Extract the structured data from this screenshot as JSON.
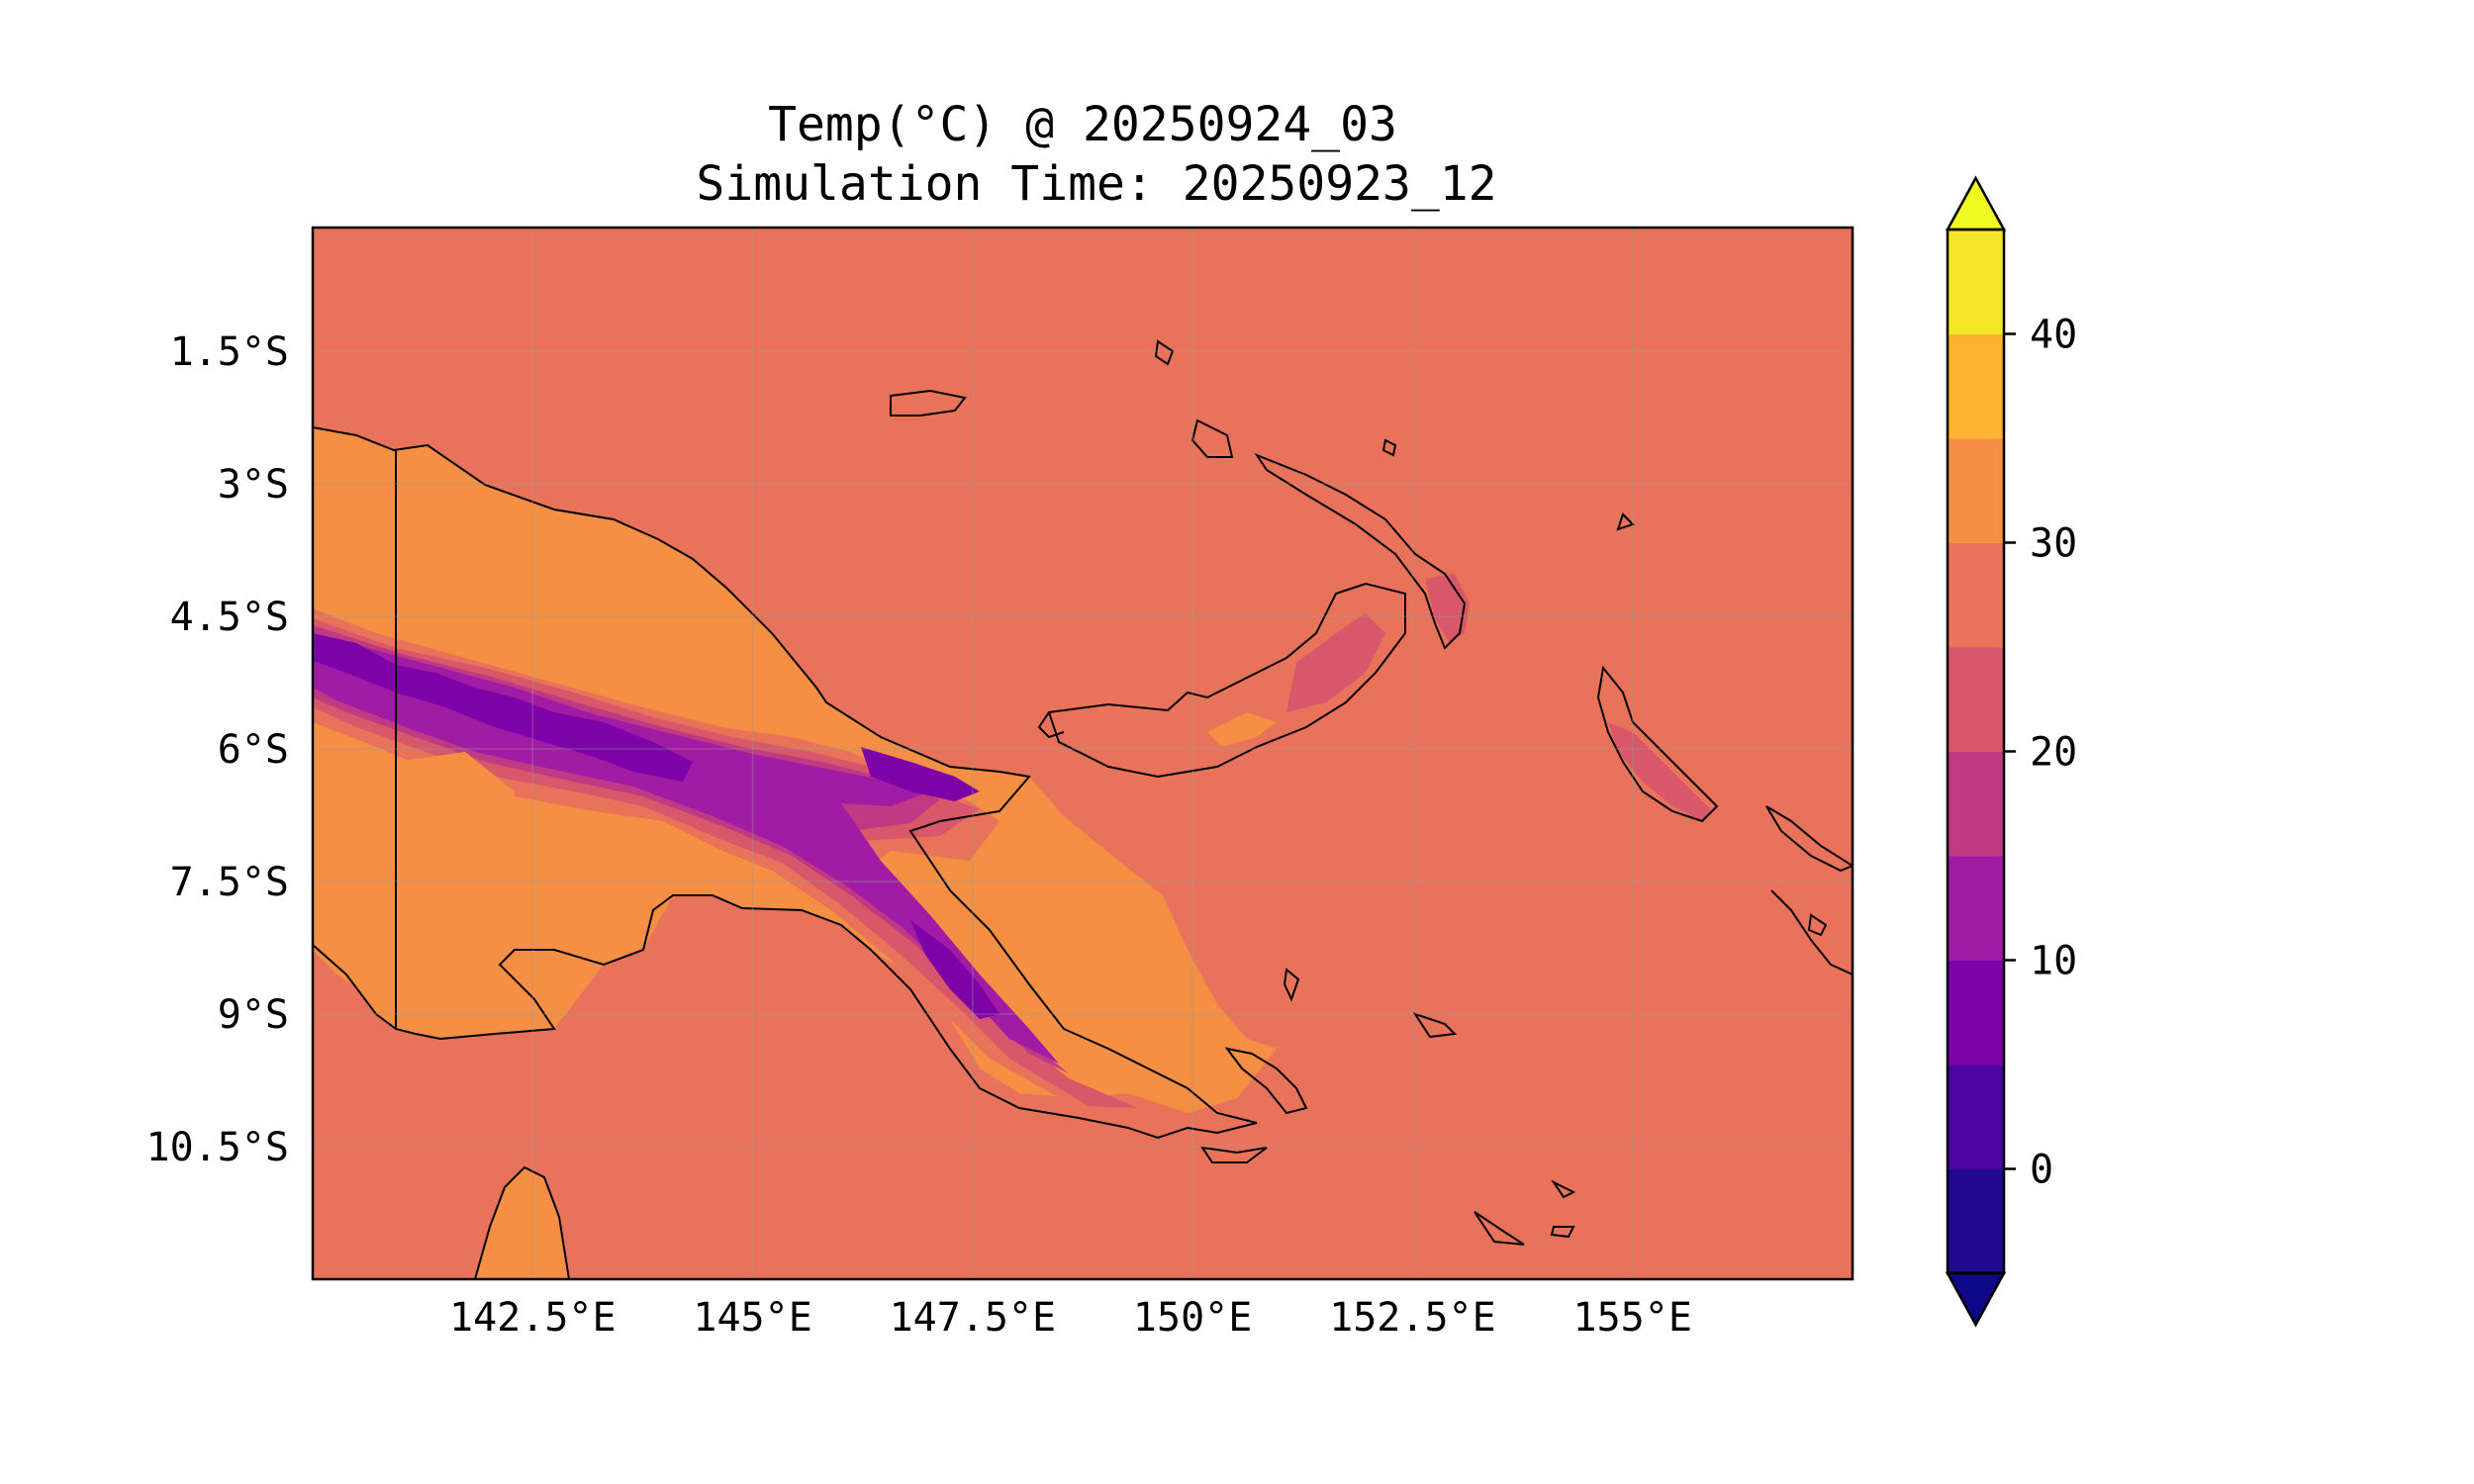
{
  "title": {
    "line1": "Temp(°C) @ 20250924_03",
    "line2": "Simulation Time: 20250923_12"
  },
  "map": {
    "lon_range": [
      140.0,
      157.5
    ],
    "lat_range": [
      -12.0,
      -0.1
    ],
    "lon_ticks": [
      {
        "value": 142.5,
        "label": "142.5°E"
      },
      {
        "value": 145.0,
        "label": "145°E"
      },
      {
        "value": 147.5,
        "label": "147.5°E"
      },
      {
        "value": 150.0,
        "label": "150°E"
      },
      {
        "value": 152.5,
        "label": "152.5°E"
      },
      {
        "value": 155.0,
        "label": "155°E"
      }
    ],
    "lat_ticks": [
      {
        "value": -1.5,
        "label": "1.5°S"
      },
      {
        "value": -3.0,
        "label": "3°S"
      },
      {
        "value": -4.5,
        "label": "4.5°S"
      },
      {
        "value": -6.0,
        "label": "6°S"
      },
      {
        "value": -7.5,
        "label": "7.5°S"
      },
      {
        "value": -9.0,
        "label": "9°S"
      },
      {
        "value": -10.5,
        "label": "10.5°S"
      }
    ],
    "gridlines": true,
    "background_level_color": "#e8735a"
  },
  "colorbar": {
    "range": [
      -5,
      45
    ],
    "extend": "both",
    "levels": [
      {
        "from": -5,
        "to": 0,
        "color": "#21088f"
      },
      {
        "from": 0,
        "to": 5,
        "color": "#4b03a1"
      },
      {
        "from": 5,
        "to": 10,
        "color": "#7d03a8"
      },
      {
        "from": 10,
        "to": 15,
        "color": "#a11ca5"
      },
      {
        "from": 15,
        "to": 20,
        "color": "#c03a83"
      },
      {
        "from": 20,
        "to": 25,
        "color": "#d8576b"
      },
      {
        "from": 25,
        "to": 30,
        "color": "#e8735a"
      },
      {
        "from": 30,
        "to": 35,
        "color": "#f58f44"
      },
      {
        "from": 35,
        "to": 40,
        "color": "#fdb32f"
      },
      {
        "from": 40,
        "to": 45,
        "color": "#f3e727"
      }
    ],
    "under_color": "#0d0887",
    "over_color": "#f0f921",
    "ticks": [
      {
        "value": 0,
        "label": "0"
      },
      {
        "value": 10,
        "label": "10"
      },
      {
        "value": 20,
        "label": "20"
      },
      {
        "value": 30,
        "label": "30"
      },
      {
        "value": 40,
        "label": "40"
      }
    ]
  }
}
